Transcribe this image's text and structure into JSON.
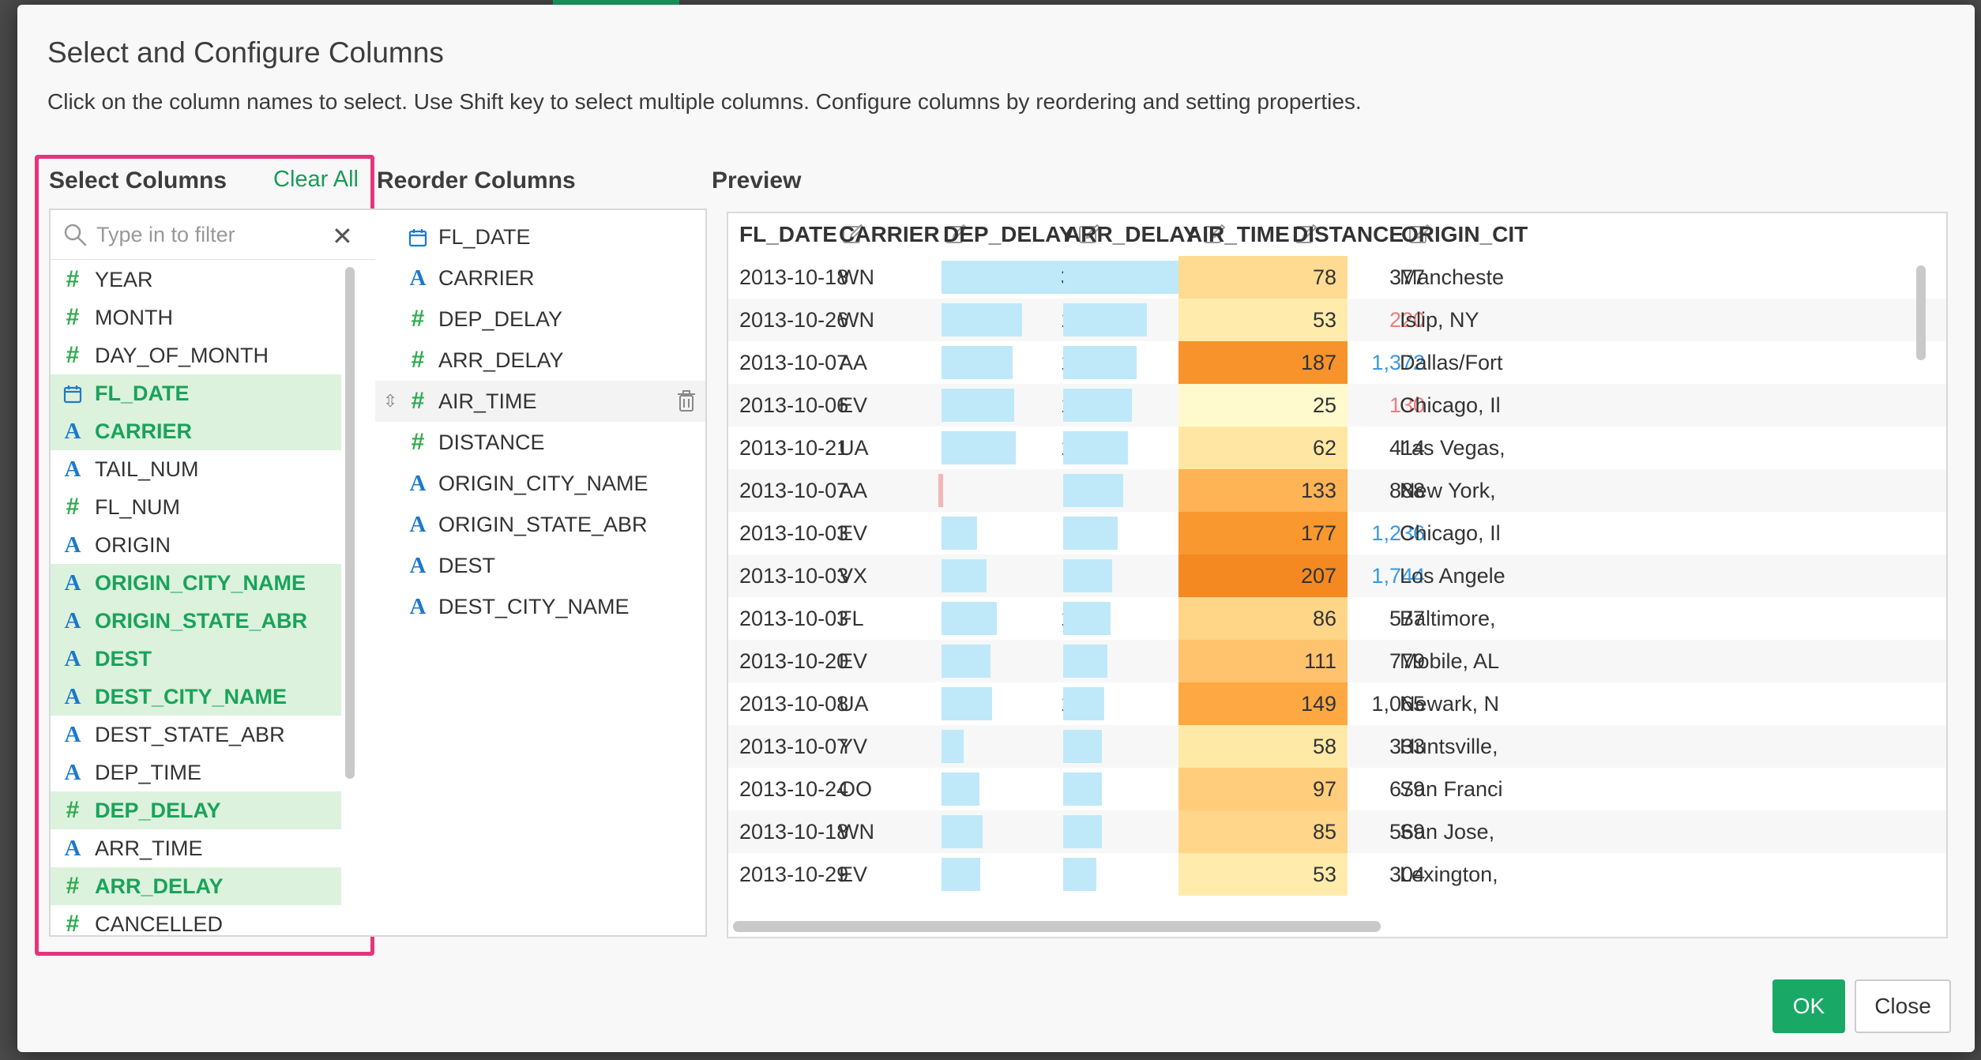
{
  "dialog": {
    "title": "Select and Configure Columns",
    "subtitle": "Click on the column names to select. Use Shift key to select multiple columns. Configure columns by reordering and setting properties."
  },
  "select_columns": {
    "heading": "Select Columns",
    "clear_all": "Clear All",
    "filter_placeholder": "Type in to filter",
    "items": [
      {
        "label": "YEAR",
        "type": "number",
        "selected": false
      },
      {
        "label": "MONTH",
        "type": "number",
        "selected": false
      },
      {
        "label": "DAY_OF_MONTH",
        "type": "number",
        "selected": false
      },
      {
        "label": "FL_DATE",
        "type": "date",
        "selected": true
      },
      {
        "label": "CARRIER",
        "type": "string",
        "selected": true
      },
      {
        "label": "TAIL_NUM",
        "type": "string",
        "selected": false
      },
      {
        "label": "FL_NUM",
        "type": "number",
        "selected": false
      },
      {
        "label": "ORIGIN",
        "type": "string",
        "selected": false
      },
      {
        "label": "ORIGIN_CITY_NAME",
        "type": "string",
        "selected": true
      },
      {
        "label": "ORIGIN_STATE_ABR",
        "type": "string",
        "selected": true
      },
      {
        "label": "DEST",
        "type": "string",
        "selected": true
      },
      {
        "label": "DEST_CITY_NAME",
        "type": "string",
        "selected": true
      },
      {
        "label": "DEST_STATE_ABR",
        "type": "string",
        "selected": false
      },
      {
        "label": "DEP_TIME",
        "type": "string",
        "selected": false
      },
      {
        "label": "DEP_DELAY",
        "type": "number",
        "selected": true
      },
      {
        "label": "ARR_TIME",
        "type": "string",
        "selected": false
      },
      {
        "label": "ARR_DELAY",
        "type": "number",
        "selected": true
      },
      {
        "label": "CANCELLED",
        "type": "number",
        "selected": false
      }
    ]
  },
  "reorder_columns": {
    "heading": "Reorder Columns",
    "items": [
      {
        "label": "FL_DATE",
        "type": "date"
      },
      {
        "label": "CARRIER",
        "type": "string"
      },
      {
        "label": "DEP_DELAY",
        "type": "number"
      },
      {
        "label": "ARR_DELAY",
        "type": "number"
      },
      {
        "label": "AIR_TIME",
        "type": "number",
        "hover": true
      },
      {
        "label": "DISTANCE",
        "type": "number"
      },
      {
        "label": "ORIGIN_CITY_NAME",
        "type": "string"
      },
      {
        "label": "ORIGIN_STATE_ABR",
        "type": "string"
      },
      {
        "label": "DEST",
        "type": "string"
      },
      {
        "label": "DEST_CITY_NAME",
        "type": "string"
      }
    ]
  },
  "preview": {
    "heading": "Preview",
    "columns": [
      "FL_DATE",
      "CARRIER",
      "DEP_DELAY",
      "ARR_DELAY",
      "AIR_TIME",
      "DISTANCE",
      "ORIGIN_CIT"
    ],
    "colors": {
      "bar": "#bfe9f9",
      "neg_bar": "#f4b6b6",
      "dist_high": "#3a98e0",
      "dist_low": "#ef7b7b"
    },
    "rows": [
      {
        "fl_date": "2013-10-18",
        "carrier": "WN",
        "dep_delay": 305,
        "arr_delay": 305,
        "air_time": 78,
        "distance": "377",
        "dist_tone": "normal",
        "origin": "Mancheste"
      },
      {
        "fl_date": "2013-10-26",
        "carrier": "WN",
        "dep_delay": 159,
        "arr_delay": 165,
        "air_time": 53,
        "distance": "220",
        "dist_tone": "low",
        "origin": "Islip, NY"
      },
      {
        "fl_date": "2013-10-07",
        "carrier": "AA",
        "dep_delay": 140,
        "arr_delay": 144,
        "air_time": 187,
        "distance": "1,372",
        "dist_tone": "high",
        "origin": "Dallas/Fort"
      },
      {
        "fl_date": "2013-10-06",
        "carrier": "EV",
        "dep_delay": 143,
        "arr_delay": 135,
        "air_time": 25,
        "distance": "130",
        "dist_tone": "low",
        "origin": "Chicago, Il"
      },
      {
        "fl_date": "2013-10-21",
        "carrier": "UA",
        "dep_delay": 146,
        "arr_delay": 127,
        "air_time": 62,
        "distance": "414",
        "dist_tone": "normal",
        "origin": "Las Vegas,"
      },
      {
        "fl_date": "2013-10-07",
        "carrier": "AA",
        "dep_delay": -11,
        "arr_delay": 119,
        "air_time": 133,
        "distance": "888",
        "dist_tone": "normal",
        "origin": "New York,"
      },
      {
        "fl_date": "2013-10-03",
        "carrier": "EV",
        "dep_delay": 70,
        "arr_delay": 107,
        "air_time": 177,
        "distance": "1,236",
        "dist_tone": "high",
        "origin": "Chicago, Il"
      },
      {
        "fl_date": "2013-10-03",
        "carrier": "VX",
        "dep_delay": 89,
        "arr_delay": 96,
        "air_time": 207,
        "distance": "1,744",
        "dist_tone": "high",
        "origin": "Los Angele"
      },
      {
        "fl_date": "2013-10-03",
        "carrier": "FL",
        "dep_delay": 109,
        "arr_delay": 94,
        "air_time": 86,
        "distance": "577",
        "dist_tone": "normal",
        "origin": "Baltimore,"
      },
      {
        "fl_date": "2013-10-20",
        "carrier": "EV",
        "dep_delay": 96,
        "arr_delay": 87,
        "air_time": 111,
        "distance": "779",
        "dist_tone": "normal",
        "origin": "Mobile, AL"
      },
      {
        "fl_date": "2013-10-08",
        "carrier": "UA",
        "dep_delay": 100,
        "arr_delay": 81,
        "air_time": 149,
        "distance": "1,065",
        "dist_tone": "normal",
        "origin": "Newark, N"
      },
      {
        "fl_date": "2013-10-07",
        "carrier": "YV",
        "dep_delay": 43,
        "arr_delay": 77,
        "air_time": 58,
        "distance": "333",
        "dist_tone": "normal",
        "origin": "Huntsville,"
      },
      {
        "fl_date": "2013-10-24",
        "carrier": "OO",
        "dep_delay": 74,
        "arr_delay": 76,
        "air_time": 97,
        "distance": "679",
        "dist_tone": "normal",
        "origin": "San Franci"
      },
      {
        "fl_date": "2013-10-18",
        "carrier": "WN",
        "dep_delay": 81,
        "arr_delay": 76,
        "air_time": 85,
        "distance": "569",
        "dist_tone": "normal",
        "origin": "San Jose,"
      },
      {
        "fl_date": "2013-10-29",
        "carrier": "EV",
        "dep_delay": 77,
        "arr_delay": 65,
        "air_time": 53,
        "distance": "304",
        "dist_tone": "normal",
        "origin": "Lexington,"
      }
    ]
  },
  "buttons": {
    "ok": "OK",
    "close": "Close"
  }
}
